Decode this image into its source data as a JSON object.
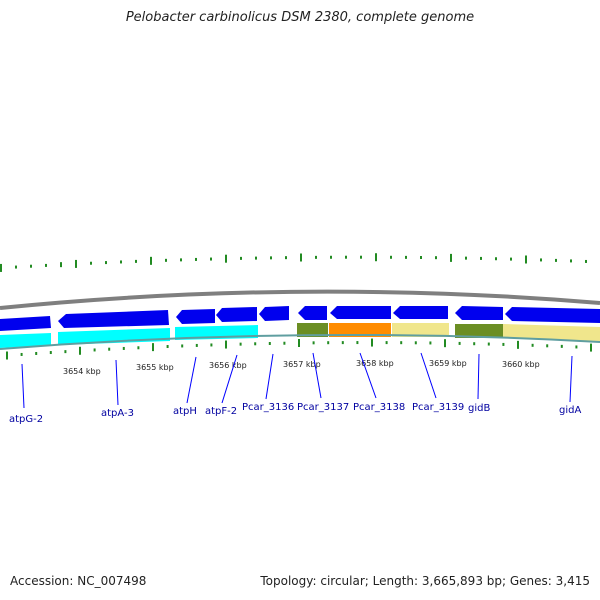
{
  "title": "Pelobacter carbinolicus DSM 2380, complete genome",
  "footer": {
    "accession": "Accession: NC_007498",
    "summary": "Topology: circular; Length: 3,665,893 bp; Genes: 3,415"
  },
  "colors": {
    "forward_gene": "#0000ee",
    "reverse_gene": "#00ffff",
    "olive_gene": "#6b8e23",
    "orange_gene": "#ff8c00",
    "khaki_gene": "#f0e68c",
    "backbone": "#808080",
    "gc_ticks": "#228b22",
    "label_line": "#0000ff"
  },
  "scale_ticks": [
    "3654 kbp",
    "3655 kbp",
    "3656 kbp",
    "3657 kbp",
    "3658 kbp",
    "3659 kbp",
    "3660 kbp"
  ],
  "gene_labels": [
    "atpG-2",
    "atpA-3",
    "atpH",
    "atpF-2",
    "Pcar_3136",
    "Pcar_3137",
    "Pcar_3138",
    "Pcar_3139",
    "gidB",
    "gidA"
  ]
}
